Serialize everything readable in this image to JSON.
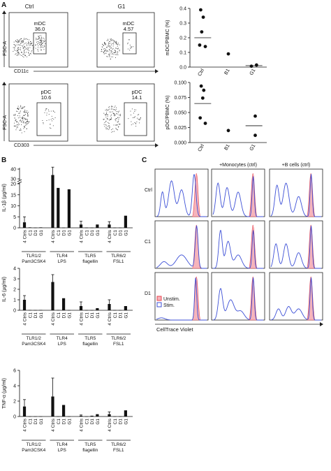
{
  "panel_labels": {
    "a": "A",
    "b": "B",
    "c": "C"
  },
  "flow": {
    "ctrl_title": "Ctrl",
    "g1_title": "G1",
    "fsc_label": "FSC-A",
    "cd11c_label": "CD11c",
    "cd303_label": "CD303",
    "mdc_label": "mDC",
    "pdc_label": "pDC",
    "mdc_ctrl_value": "36.0",
    "mdc_g1_value": "4.57",
    "pdc_ctrl_value": "10.6",
    "pdc_g1_value": "14.1"
  },
  "chart_data": [
    {
      "id": "mdc",
      "type": "scatter",
      "ylabel": "mDC/PBMC (%)",
      "categories": [
        "Ctrl",
        "B1",
        "G1"
      ],
      "ylim": [
        0,
        0.4
      ],
      "yticks": [
        "0.0",
        "0.1",
        "0.2",
        "0.3",
        "0.4"
      ],
      "ytick_values": [
        0,
        0.1,
        0.2,
        0.3,
        0.4
      ],
      "points": [
        {
          "cat": 0,
          "dx": -0.08,
          "y": 0.39
        },
        {
          "cat": 0,
          "dx": 0.02,
          "y": 0.34
        },
        {
          "cat": 0,
          "dx": -0.04,
          "y": 0.24
        },
        {
          "cat": 0,
          "dx": -0.12,
          "y": 0.15
        },
        {
          "cat": 0,
          "dx": 0.1,
          "y": 0.14
        },
        {
          "cat": 1,
          "dx": 0,
          "y": 0.09
        },
        {
          "cat": 2,
          "dx": -0.1,
          "y": 0.006
        },
        {
          "cat": 2,
          "dx": 0.1,
          "y": 0.014
        }
      ],
      "means": [
        0.2,
        null,
        0.01
      ]
    },
    {
      "id": "pdc",
      "type": "scatter",
      "ylabel": "pDC/PBMC (%)",
      "categories": [
        "Ctrl",
        "B1",
        "G1"
      ],
      "ylim": [
        0,
        0.1
      ],
      "yticks": [
        "0.000",
        "0.025",
        "0.050",
        "0.075",
        "0.100"
      ],
      "ytick_values": [
        0,
        0.025,
        0.05,
        0.075,
        0.1
      ],
      "points": [
        {
          "cat": 0,
          "dx": -0.06,
          "y": 0.094
        },
        {
          "cat": 0,
          "dx": 0.04,
          "y": 0.087
        },
        {
          "cat": 0,
          "dx": 0,
          "y": 0.074
        },
        {
          "cat": 0,
          "dx": -0.1,
          "y": 0.041
        },
        {
          "cat": 0,
          "dx": 0.1,
          "y": 0.032
        },
        {
          "cat": 1,
          "dx": 0,
          "y": 0.02
        },
        {
          "cat": 2,
          "dx": 0.05,
          "y": 0.044
        },
        {
          "cat": 2,
          "dx": 0.05,
          "y": 0.012
        }
      ],
      "means": [
        0.065,
        null,
        0.028
      ]
    },
    {
      "id": "il1b",
      "type": "bar",
      "ylabel": "IL-1β (µg/ml)",
      "groups": [
        "4 Ctrls",
        "C1",
        "D1",
        "G1"
      ],
      "ligands": [
        {
          "receptor": "TLR1/2",
          "agonist": "Pam3CSK4"
        },
        {
          "receptor": "TLR4",
          "agonist": "LPS"
        },
        {
          "receptor": "TLR5",
          "agonist": "flagellin"
        },
        {
          "receptor": "TLR6/2",
          "agonist": "FSL1"
        }
      ],
      "broken_axis": true,
      "yticks_low": [
        "0",
        "5",
        "10",
        "15",
        "20"
      ],
      "ytick_values_low": [
        0,
        5,
        10,
        15,
        20
      ],
      "yticks_high": [
        "30",
        "40"
      ],
      "ytick_values_high": [
        30,
        40
      ],
      "values": [
        [
          2.5,
          0.2,
          0.1,
          0.2
        ],
        [
          34,
          18,
          0.1,
          17.5
        ],
        [
          1.5,
          0.1,
          0.1,
          1.5
        ],
        [
          1.5,
          0.1,
          0.1,
          5.5
        ]
      ],
      "errors": [
        [
          2.5,
          0,
          0,
          0
        ],
        [
          8,
          2.5,
          0,
          0
        ],
        [
          1.5,
          0,
          0,
          0
        ],
        [
          1.3,
          0,
          0,
          0
        ]
      ]
    },
    {
      "id": "il6",
      "type": "bar",
      "ylabel": "IL-6 (µg/ml)",
      "groups": [
        "4 Ctrls",
        "C1",
        "D1",
        "G1"
      ],
      "ligands": [
        {
          "receptor": "TLR1/2",
          "agonist": "Pam3CSK4"
        },
        {
          "receptor": "TLR4",
          "agonist": "LPS"
        },
        {
          "receptor": "TLR5",
          "agonist": "flagellin"
        },
        {
          "receptor": "TLR6/2",
          "agonist": "FSL1"
        }
      ],
      "ylim": [
        0,
        4
      ],
      "yticks": [
        "0",
        "1",
        "2",
        "3",
        "4"
      ],
      "ytick_values": [
        0,
        1,
        2,
        3,
        4
      ],
      "values": [
        [
          1.0,
          0.03,
          0.02,
          0.03
        ],
        [
          2.7,
          0.03,
          1.15,
          0.02
        ],
        [
          0.4,
          0.02,
          0.02,
          0.2
        ],
        [
          0.6,
          0.02,
          0.02,
          0.4
        ]
      ],
      "errors": [
        [
          0.4,
          0,
          0,
          0
        ],
        [
          0.7,
          0,
          0,
          0
        ],
        [
          0.4,
          0,
          0,
          0
        ],
        [
          0.4,
          0,
          0,
          0
        ]
      ]
    },
    {
      "id": "tnfa",
      "type": "bar",
      "ylabel": "TNF-α (µg/ml)",
      "groups": [
        "4 Ctrls",
        "C1",
        "D1",
        "G1"
      ],
      "ligands": [
        {
          "receptor": "TLR1/2",
          "agonist": "Pam3CSK4"
        },
        {
          "receptor": "TLR4",
          "agonist": "LPS"
        },
        {
          "receptor": "TLR5",
          "agonist": "flagellin"
        },
        {
          "receptor": "TLR6/2",
          "agonist": "FSL1"
        }
      ],
      "ylim": [
        0,
        6
      ],
      "yticks": [
        "0",
        "2",
        "4",
        "6"
      ],
      "ytick_values": [
        0,
        2,
        4,
        6
      ],
      "values": [
        [
          1.3,
          0.02,
          0.02,
          0.02
        ],
        [
          2.6,
          0.02,
          1.5,
          0.02
        ],
        [
          0.1,
          0.02,
          0.1,
          0.3
        ],
        [
          0.3,
          0.02,
          0.02,
          0.8
        ]
      ],
      "errors": [
        [
          0.9,
          0,
          0,
          0
        ],
        [
          2.4,
          0,
          0,
          0
        ],
        [
          0.1,
          0,
          0,
          0
        ],
        [
          0.3,
          0,
          0,
          0
        ]
      ]
    }
  ],
  "histograms": {
    "col_headers": [
      "+Monocytes (ctrl)",
      "+B cells (ctrl)"
    ],
    "row_labels": [
      "Ctrl",
      "C1",
      "D1"
    ],
    "legend": [
      {
        "label": "Unstim.",
        "color": "#e8454f"
      },
      {
        "label": "Stim.",
        "color": "#3c4fd6"
      }
    ],
    "xlabel": "CellTrace Violet",
    "unstim_fill": "#f6b4bb",
    "stim_color": "#3c4fd6",
    "bar_color": "#111111"
  }
}
